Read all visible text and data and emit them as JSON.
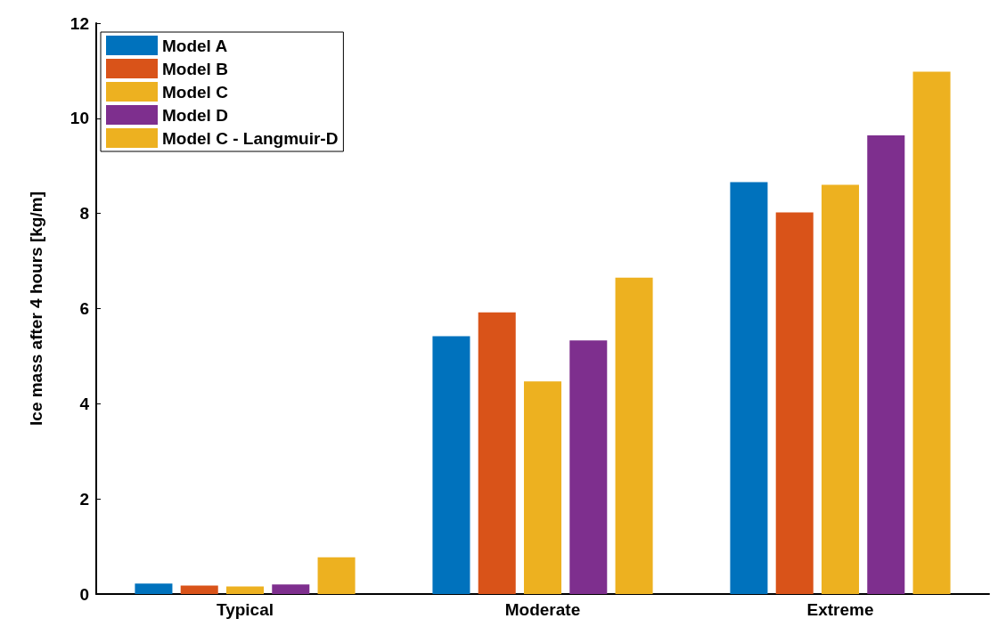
{
  "chart_data": {
    "type": "bar",
    "ylabel": "Ice mass after 4 hours [kg/m]",
    "categories": [
      "Typical",
      "Moderate",
      "Extreme"
    ],
    "ylim": [
      0,
      12
    ],
    "yticks": [
      0,
      2,
      4,
      6,
      8,
      10,
      12
    ],
    "grid": false,
    "legend": "top left",
    "series": [
      {
        "name": "Model A",
        "color": "#0072bd",
        "values": [
          0.22,
          5.42,
          8.66
        ]
      },
      {
        "name": "Model B",
        "color": "#d95319",
        "values": [
          0.18,
          5.92,
          8.02
        ]
      },
      {
        "name": "Model C",
        "color": "#edb120",
        "values": [
          0.16,
          4.47,
          8.6
        ]
      },
      {
        "name": "Model D",
        "color": "#7e2f8e",
        "values": [
          0.2,
          5.33,
          9.64
        ]
      },
      {
        "name": "Model C - Langmuir-D",
        "color": "#edb120",
        "values": [
          0.77,
          6.65,
          10.98
        ]
      }
    ]
  }
}
